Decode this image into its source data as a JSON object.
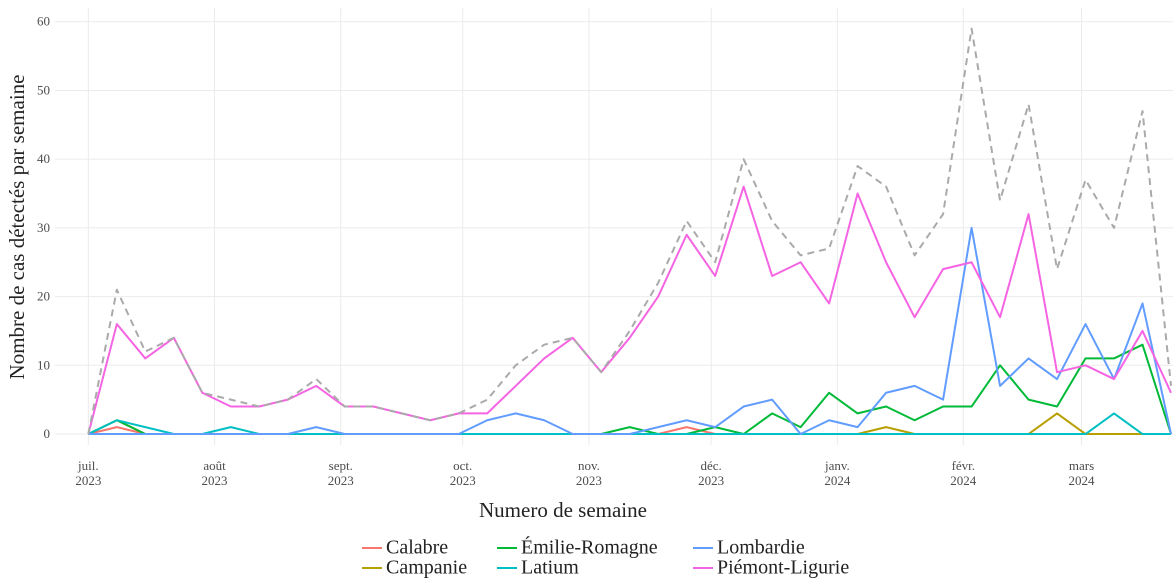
{
  "chart_data": {
    "type": "line",
    "x_label": "Numero de semaine",
    "y_label": "Nombre de cas détectés par semaine",
    "x": [
      0,
      1,
      2,
      3,
      4,
      5,
      6,
      7,
      8,
      9,
      10,
      11,
      12,
      13,
      14,
      15,
      16,
      17,
      18,
      19,
      20,
      21,
      22,
      23,
      24,
      25,
      26,
      27,
      28,
      29,
      30,
      31,
      32,
      33,
      34,
      35,
      36,
      37,
      38
    ],
    "xlim": [
      -1.17,
      38.07
    ],
    "xticks": [
      {
        "value": 0,
        "label": "juil.\n2023"
      },
      {
        "value": 4.43,
        "label": "août\n2023"
      },
      {
        "value": 8.86,
        "label": "sept.\n2023"
      },
      {
        "value": 13.14,
        "label": "oct.\n2023"
      },
      {
        "value": 17.57,
        "label": "nov.\n2023"
      },
      {
        "value": 21.86,
        "label": "déc.\n2023"
      },
      {
        "value": 26.29,
        "label": "janv.\n2024"
      },
      {
        "value": 30.71,
        "label": "févr.\n2024"
      },
      {
        "value": 34.86,
        "label": "mars\n2024"
      }
    ],
    "ylim": [
      -1.6,
      62
    ],
    "yticks": [
      0,
      10,
      20,
      30,
      40,
      50,
      60
    ],
    "grid": true,
    "legend": "bottom",
    "series": [
      {
        "name": "Calabre",
        "color": "#F8766D",
        "values": [
          0,
          1,
          0,
          0,
          0,
          0,
          0,
          0,
          0,
          0,
          0,
          0,
          0,
          0,
          0,
          0,
          0,
          0,
          0,
          0,
          0,
          1,
          0,
          0,
          0,
          0,
          0,
          0,
          0,
          0,
          0,
          0,
          0,
          0,
          0,
          0,
          0,
          0,
          0
        ]
      },
      {
        "name": "Campanie",
        "color": "#B79F00",
        "values": [
          0,
          2,
          0,
          0,
          0,
          0,
          0,
          0,
          0,
          0,
          0,
          0,
          0,
          0,
          0,
          0,
          0,
          0,
          0,
          0,
          0,
          0,
          0,
          0,
          0,
          0,
          0,
          0,
          1,
          0,
          0,
          0,
          0,
          0,
          3,
          0,
          0,
          0,
          0
        ]
      },
      {
        "name": "Émilie-Romagne",
        "color": "#00BA38",
        "values": [
          0,
          2,
          0,
          0,
          0,
          0,
          0,
          0,
          0,
          0,
          0,
          0,
          0,
          0,
          0,
          0,
          0,
          0,
          0,
          1,
          0,
          0,
          1,
          0,
          3,
          1,
          6,
          3,
          4,
          2,
          4,
          4,
          10,
          5,
          4,
          11,
          11,
          13,
          0
        ]
      },
      {
        "name": "Latium",
        "color": "#00BFC4",
        "values": [
          0,
          2,
          1,
          0,
          0,
          1,
          0,
          0,
          0,
          0,
          0,
          0,
          0,
          0,
          0,
          0,
          0,
          0,
          0,
          0,
          0,
          0,
          0,
          0,
          0,
          0,
          0,
          0,
          0,
          0,
          0,
          0,
          0,
          0,
          0,
          0,
          3,
          0,
          0
        ]
      },
      {
        "name": "Lombardie",
        "color": "#619CFF",
        "values": [
          0,
          0,
          0,
          0,
          0,
          0,
          0,
          0,
          1,
          0,
          0,
          0,
          0,
          0,
          2,
          3,
          2,
          0,
          0,
          0,
          1,
          2,
          1,
          4,
          5,
          0,
          2,
          1,
          6,
          7,
          5,
          30,
          7,
          11,
          8,
          16,
          8,
          19,
          0
        ]
      },
      {
        "name": "Piémont-Ligurie",
        "color": "#F564E3",
        "values": [
          0,
          16,
          11,
          14,
          6,
          4,
          4,
          5,
          7,
          4,
          4,
          3,
          2,
          3,
          3,
          7,
          11,
          14,
          9,
          14,
          20,
          29,
          23,
          36,
          23,
          25,
          19,
          35,
          25,
          17,
          24,
          25,
          17,
          32,
          9,
          10,
          8,
          15,
          6
        ]
      }
    ],
    "dashed_series": {
      "color": "#aaaaaa",
      "values": [
        0,
        21,
        12,
        14,
        6,
        5,
        4,
        5,
        8,
        4,
        4,
        3,
        2,
        3,
        5,
        10,
        13,
        14,
        9,
        15,
        22,
        31,
        25,
        40,
        31,
        26,
        27,
        39,
        36,
        26,
        32,
        59,
        34,
        48,
        24,
        37,
        30,
        47,
        7
      ]
    }
  }
}
